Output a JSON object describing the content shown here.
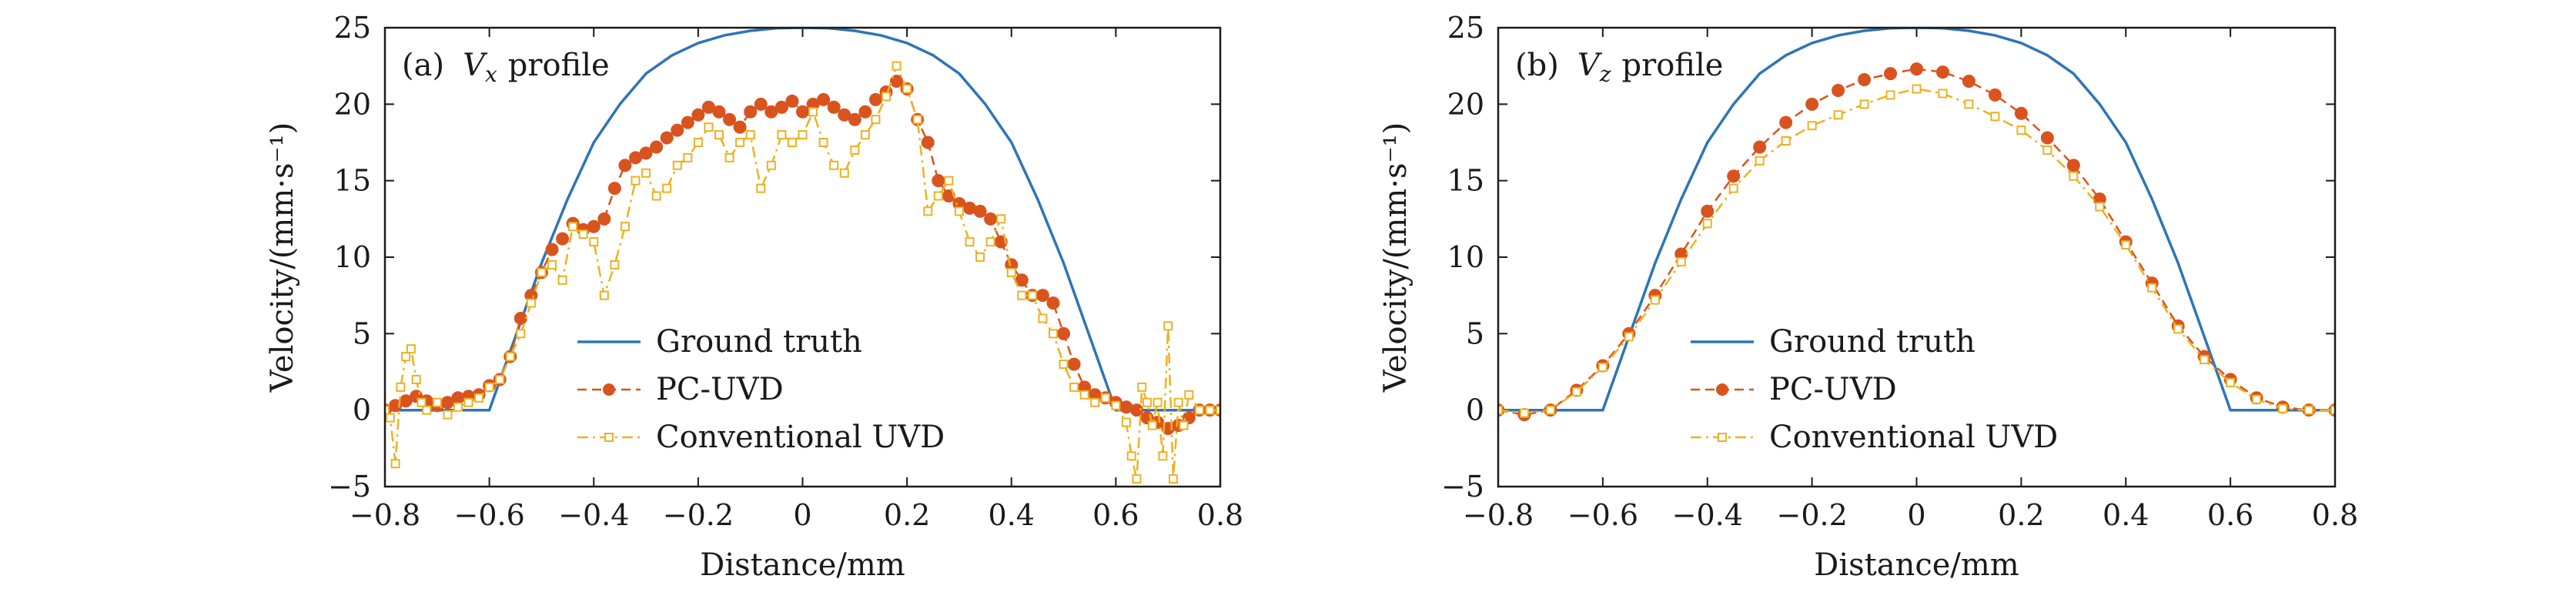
{
  "chart_data": [
    {
      "type": "line",
      "panel_label": "(a)",
      "title_var": "V",
      "title_sub": "x",
      "title_rest": "profile",
      "xlabel": "Distance/mm",
      "ylabel": "Velocity/(mm·s⁻¹)",
      "xlim": [
        -0.8,
        0.8
      ],
      "ylim": [
        -5,
        25
      ],
      "xticks": [
        -0.8,
        -0.6,
        -0.4,
        -0.2,
        0,
        0.2,
        0.4,
        0.6,
        0.8
      ],
      "xtick_labels": [
        "−0.8",
        "−0.6",
        "−0.4",
        "−0.2",
        "0",
        "0.2",
        "0.4",
        "0.6",
        "0.8"
      ],
      "yticks": [
        -5,
        0,
        5,
        10,
        15,
        20,
        25
      ],
      "ytick_labels": [
        "−5",
        "0",
        "5",
        "10",
        "15",
        "20",
        "25"
      ],
      "legend_position": "bottom-center",
      "colors": {
        "ground": "#2e75b6",
        "pc": "#d9531e",
        "conv": "#edb120"
      },
      "series": [
        {
          "name": "Ground truth",
          "style": "solid",
          "x": [
            -0.8,
            -0.6,
            -0.55,
            -0.5,
            -0.45,
            -0.4,
            -0.35,
            -0.3,
            -0.25,
            -0.2,
            -0.15,
            -0.1,
            -0.05,
            0,
            0.05,
            0.1,
            0.15,
            0.2,
            0.25,
            0.3,
            0.35,
            0.4,
            0.45,
            0.5,
            0.55,
            0.6,
            0.8
          ],
          "y": [
            0,
            0,
            4.8,
            9.6,
            13.8,
            17.5,
            20.0,
            22.0,
            23.2,
            24.0,
            24.5,
            24.8,
            24.97,
            25.0,
            24.97,
            24.8,
            24.5,
            24.0,
            23.2,
            22.0,
            20.0,
            17.5,
            13.8,
            9.6,
            4.8,
            0,
            0
          ]
        },
        {
          "name": "PC-UVD",
          "style": "dashed-circle",
          "x": [
            -0.8,
            -0.78,
            -0.76,
            -0.74,
            -0.72,
            -0.7,
            -0.68,
            -0.66,
            -0.64,
            -0.62,
            -0.6,
            -0.58,
            -0.56,
            -0.54,
            -0.52,
            -0.5,
            -0.48,
            -0.46,
            -0.44,
            -0.42,
            -0.4,
            -0.38,
            -0.36,
            -0.34,
            -0.32,
            -0.3,
            -0.28,
            -0.26,
            -0.24,
            -0.22,
            -0.2,
            -0.18,
            -0.16,
            -0.14,
            -0.12,
            -0.1,
            -0.08,
            -0.06,
            -0.04,
            -0.02,
            0,
            0.02,
            0.04,
            0.06,
            0.08,
            0.1,
            0.12,
            0.14,
            0.16,
            0.18,
            0.2,
            0.22,
            0.24,
            0.26,
            0.28,
            0.3,
            0.32,
            0.34,
            0.36,
            0.38,
            0.4,
            0.42,
            0.44,
            0.46,
            0.48,
            0.5,
            0.52,
            0.54,
            0.56,
            0.58,
            0.6,
            0.62,
            0.64,
            0.66,
            0.68,
            0.7,
            0.72,
            0.74,
            0.76,
            0.78,
            0.8
          ],
          "y": [
            0,
            0.3,
            0.6,
            0.9,
            0.6,
            0.3,
            0.5,
            0.8,
            0.9,
            1.0,
            1.6,
            2.0,
            3.5,
            6.0,
            7.5,
            9.0,
            10.5,
            11.2,
            12.2,
            11.8,
            12.0,
            12.5,
            14.5,
            16.0,
            16.5,
            16.8,
            17.2,
            17.8,
            18.3,
            18.8,
            19.3,
            19.8,
            19.5,
            19.0,
            18.5,
            19.5,
            20.0,
            19.5,
            19.8,
            20.2,
            19.5,
            20.0,
            20.3,
            19.8,
            19.3,
            19.0,
            19.5,
            20.3,
            20.8,
            21.5,
            21.0,
            19.0,
            17.5,
            15.0,
            14.0,
            13.5,
            13.2,
            13.0,
            12.5,
            11.0,
            9.5,
            8.5,
            7.5,
            7.5,
            7.0,
            5.0,
            3.0,
            1.5,
            1.0,
            0.8,
            0.5,
            0.2,
            0,
            -0.5,
            -0.8,
            -1.2,
            -1.0,
            -0.5,
            0,
            0,
            0
          ]
        },
        {
          "name": "Conventional UVD",
          "style": "dashdot-square",
          "x": [
            -0.8,
            -0.79,
            -0.78,
            -0.77,
            -0.76,
            -0.75,
            -0.74,
            -0.73,
            -0.72,
            -0.7,
            -0.68,
            -0.66,
            -0.64,
            -0.62,
            -0.6,
            -0.58,
            -0.56,
            -0.54,
            -0.52,
            -0.5,
            -0.48,
            -0.46,
            -0.44,
            -0.42,
            -0.4,
            -0.38,
            -0.36,
            -0.34,
            -0.32,
            -0.3,
            -0.28,
            -0.26,
            -0.24,
            -0.22,
            -0.2,
            -0.18,
            -0.16,
            -0.14,
            -0.12,
            -0.1,
            -0.08,
            -0.06,
            -0.04,
            -0.02,
            0,
            0.02,
            0.04,
            0.06,
            0.08,
            0.1,
            0.12,
            0.14,
            0.16,
            0.18,
            0.2,
            0.22,
            0.24,
            0.26,
            0.28,
            0.3,
            0.32,
            0.34,
            0.36,
            0.38,
            0.4,
            0.42,
            0.44,
            0.46,
            0.48,
            0.5,
            0.52,
            0.54,
            0.56,
            0.58,
            0.6,
            0.62,
            0.63,
            0.64,
            0.65,
            0.66,
            0.67,
            0.68,
            0.69,
            0.7,
            0.71,
            0.72,
            0.73,
            0.74,
            0.76,
            0.78,
            0.8
          ],
          "y": [
            0,
            -0.5,
            -3.5,
            1.5,
            3.5,
            4.0,
            2.0,
            0.5,
            0,
            0.5,
            -0.3,
            0.2,
            0.5,
            0.8,
            1.5,
            2.0,
            3.5,
            5.0,
            7.0,
            9.0,
            9.5,
            8.5,
            12.0,
            11.5,
            11.0,
            7.5,
            9.5,
            12.0,
            15.0,
            15.5,
            14.0,
            14.5,
            16.0,
            16.5,
            17.5,
            18.5,
            18.0,
            16.5,
            17.5,
            18.0,
            14.5,
            16.0,
            18.0,
            17.5,
            18.0,
            19.5,
            17.5,
            16.0,
            15.5,
            17.0,
            18.0,
            19.0,
            20.5,
            22.5,
            21.0,
            19.0,
            13.0,
            14.0,
            15.0,
            13.0,
            11.0,
            10.0,
            11.0,
            12.5,
            9.0,
            7.5,
            7.5,
            6.0,
            5.0,
            3.0,
            1.5,
            1.0,
            0.5,
            0.8,
            0.3,
            -0.8,
            -3.0,
            -4.5,
            1.5,
            0.5,
            -1.0,
            0.5,
            -3.0,
            5.5,
            -4.5,
            0.5,
            -1.0,
            1.0,
            0,
            0,
            0
          ]
        }
      ]
    },
    {
      "type": "line",
      "panel_label": "(b)",
      "title_var": "V",
      "title_sub": "z",
      "title_rest": "profile",
      "xlabel": "Distance/mm",
      "ylabel": "Velocity/(mm·s⁻¹)",
      "xlim": [
        -0.8,
        0.8
      ],
      "ylim": [
        -5,
        25
      ],
      "xticks": [
        -0.8,
        -0.6,
        -0.4,
        -0.2,
        0,
        0.2,
        0.4,
        0.6,
        0.8
      ],
      "xtick_labels": [
        "−0.8",
        "−0.6",
        "−0.4",
        "−0.2",
        "0",
        "0.2",
        "0.4",
        "0.6",
        "0.8"
      ],
      "yticks": [
        -5,
        0,
        5,
        10,
        15,
        20,
        25
      ],
      "ytick_labels": [
        "−5",
        "0",
        "5",
        "10",
        "15",
        "20",
        "25"
      ],
      "legend_position": "bottom-center",
      "colors": {
        "ground": "#2e75b6",
        "pc": "#d9531e",
        "conv": "#edb120"
      },
      "series": [
        {
          "name": "Ground truth",
          "style": "solid",
          "x": [
            -0.8,
            -0.6,
            -0.55,
            -0.5,
            -0.45,
            -0.4,
            -0.35,
            -0.3,
            -0.25,
            -0.2,
            -0.15,
            -0.1,
            -0.05,
            0,
            0.05,
            0.1,
            0.15,
            0.2,
            0.25,
            0.3,
            0.35,
            0.4,
            0.45,
            0.5,
            0.55,
            0.6,
            0.8
          ],
          "y": [
            0,
            0,
            4.8,
            9.6,
            13.8,
            17.5,
            20.0,
            22.0,
            23.2,
            24.0,
            24.5,
            24.8,
            24.97,
            25.0,
            24.97,
            24.8,
            24.5,
            24.0,
            23.2,
            22.0,
            20.0,
            17.5,
            13.8,
            9.6,
            4.8,
            0,
            0
          ]
        },
        {
          "name": "PC-UVD",
          "style": "dashed-circle",
          "x": [
            -0.8,
            -0.75,
            -0.7,
            -0.65,
            -0.6,
            -0.55,
            -0.5,
            -0.45,
            -0.4,
            -0.35,
            -0.3,
            -0.25,
            -0.2,
            -0.15,
            -0.1,
            -0.05,
            0,
            0.05,
            0.1,
            0.15,
            0.2,
            0.25,
            0.3,
            0.35,
            0.4,
            0.45,
            0.5,
            0.55,
            0.6,
            0.65,
            0.7,
            0.75,
            0.8
          ],
          "y": [
            0,
            -0.3,
            0,
            1.3,
            2.9,
            5.0,
            7.5,
            10.2,
            13.0,
            15.3,
            17.2,
            18.8,
            20.0,
            20.9,
            21.6,
            22.0,
            22.3,
            22.1,
            21.5,
            20.6,
            19.4,
            17.8,
            16.0,
            13.8,
            11.0,
            8.3,
            5.5,
            3.5,
            2.0,
            0.8,
            0.2,
            0,
            0
          ]
        },
        {
          "name": "Conventional UVD",
          "style": "dashdot-square",
          "x": [
            -0.8,
            -0.75,
            -0.7,
            -0.65,
            -0.6,
            -0.55,
            -0.5,
            -0.45,
            -0.4,
            -0.35,
            -0.3,
            -0.25,
            -0.2,
            -0.15,
            -0.1,
            -0.05,
            0,
            0.05,
            0.1,
            0.15,
            0.2,
            0.25,
            0.3,
            0.35,
            0.4,
            0.45,
            0.5,
            0.55,
            0.6,
            0.65,
            0.7,
            0.75,
            0.8
          ],
          "y": [
            0,
            -0.2,
            0,
            1.2,
            2.8,
            4.8,
            7.2,
            9.7,
            12.2,
            14.5,
            16.3,
            17.6,
            18.6,
            19.3,
            20.0,
            20.6,
            21.0,
            20.7,
            20.0,
            19.2,
            18.3,
            17.0,
            15.3,
            13.3,
            10.8,
            8.0,
            5.3,
            3.3,
            1.8,
            0.7,
            0.1,
            0,
            0
          ]
        }
      ]
    }
  ]
}
